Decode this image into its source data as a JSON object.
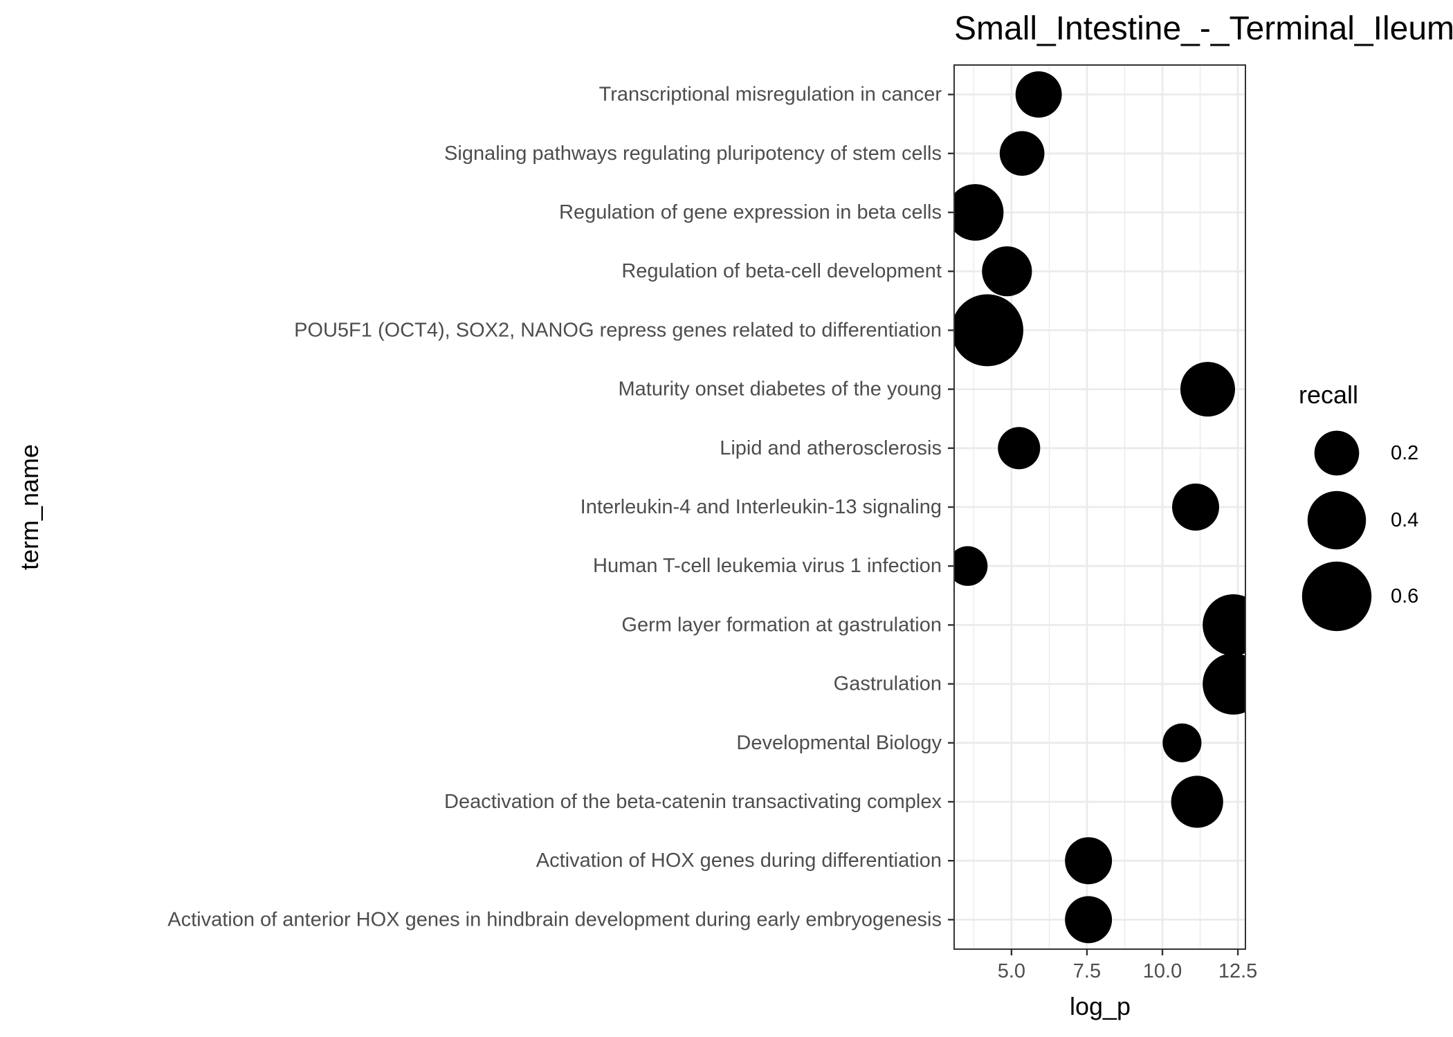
{
  "chart_data": {
    "type": "scatter",
    "title": "Small_Intestine_-_Terminal_Ileum",
    "xlabel": "log_p",
    "ylabel": "term_name",
    "xlim": [
      3.1,
      12.75
    ],
    "xticks": [
      5.0,
      7.5,
      10.0,
      12.5
    ],
    "xtick_labels": [
      "5.0",
      "7.5",
      "10.0",
      "12.5"
    ],
    "grid": true,
    "legend": {
      "title": "recall",
      "position": "right",
      "values": [
        0.2,
        0.4,
        0.6
      ],
      "labels": [
        "0.2",
        "0.4",
        "0.6"
      ]
    },
    "size_range": [
      0.1,
      0.65
    ],
    "points": [
      {
        "term": "Transcriptional misregulation in cancer",
        "log_p": 5.9,
        "recall": 0.22
      },
      {
        "term": "Signaling pathways regulating pluripotency of stem cells",
        "log_p": 5.35,
        "recall": 0.2
      },
      {
        "term": "Regulation of gene expression in beta cells",
        "log_p": 3.8,
        "recall": 0.37
      },
      {
        "term": "Regulation of beta-cell development",
        "log_p": 4.85,
        "recall": 0.27
      },
      {
        "term": "POU5F1 (OCT4), SOX2, NANOG repress genes related to differentiation",
        "log_p": 4.2,
        "recall": 0.65
      },
      {
        "term": "Maturity onset diabetes of the young",
        "log_p": 11.5,
        "recall": 0.34
      },
      {
        "term": "Lipid and atherosclerosis",
        "log_p": 5.25,
        "recall": 0.17
      },
      {
        "term": "Interleukin-4 and Interleukin-13 signaling",
        "log_p": 11.1,
        "recall": 0.23
      },
      {
        "term": "Human T-cell leukemia virus 1 infection",
        "log_p": 3.55,
        "recall": 0.14
      },
      {
        "term": "Germ layer formation at gastrulation",
        "log_p": 12.35,
        "recall": 0.45
      },
      {
        "term": "Gastrulation",
        "log_p": 12.35,
        "recall": 0.45
      },
      {
        "term": "Developmental Biology",
        "log_p": 10.65,
        "recall": 0.13
      },
      {
        "term": "Deactivation of the beta-catenin transactivating complex",
        "log_p": 11.15,
        "recall": 0.3
      },
      {
        "term": "Activation of HOX genes during differentiation",
        "log_p": 7.55,
        "recall": 0.23
      },
      {
        "term": "Activation of anterior HOX genes in hindbrain development during early embryogenesis",
        "log_p": 7.55,
        "recall": 0.23
      }
    ]
  }
}
